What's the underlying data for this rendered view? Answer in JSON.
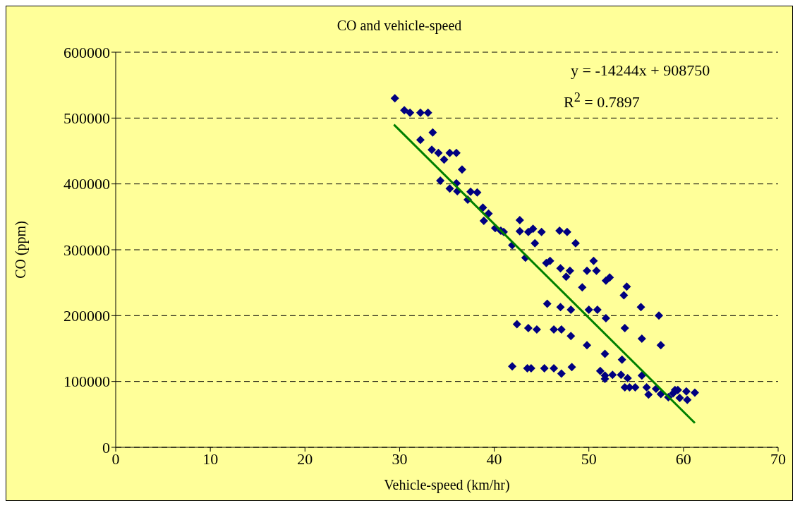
{
  "chart_data": {
    "type": "scatter",
    "title": "CO and vehicle-speed",
    "xlabel": "Vehicle-speed (km/hr)",
    "ylabel": "CO (ppm)",
    "xlim": [
      0,
      70
    ],
    "xticks": [
      0,
      10,
      20,
      30,
      40,
      50,
      60,
      70
    ],
    "ylim": [
      0,
      600000
    ],
    "yticks": [
      0,
      100000,
      200000,
      300000,
      400000,
      500000,
      600000
    ],
    "grid": "y",
    "legend": false,
    "marker": "diamond",
    "annotations": [
      "y = -14244x + 908750",
      "R$^{2}$ = 0.7897"
    ],
    "series": [
      {
        "color": "#000080",
        "x": [
          29.5,
          30.5,
          31.1,
          32.2,
          33.0,
          32.2,
          33.5,
          33.4,
          34.1,
          35.3,
          36.0,
          34.7,
          36.6,
          34.3,
          35.3,
          36.1,
          36.0,
          37.2,
          37.5,
          38.2,
          38.8,
          39.4,
          38.9,
          40.1,
          40.7,
          41.0,
          41.9,
          42.7,
          42.7,
          43.6,
          44.1,
          45.0,
          46.9,
          47.7,
          44.3,
          48.6,
          43.3,
          45.5,
          45.9,
          47.0,
          48.0,
          47.6,
          49.8,
          50.5,
          50.8,
          51.8,
          52.2,
          49.3,
          54.0,
          53.7,
          45.6,
          47.0,
          48.1,
          50.0,
          50.9,
          51.8,
          55.5,
          42.4,
          43.6,
          44.5,
          46.3,
          47.1,
          48.1,
          53.8,
          55.6,
          49.8,
          51.7,
          53.5,
          41.9,
          43.5,
          43.9,
          45.3,
          46.3,
          47.1,
          48.2,
          57.4,
          57.6,
          51.2,
          51.7,
          51.7,
          52.5,
          53.4,
          54.1,
          55.6,
          53.8,
          54.3,
          54.9,
          56.1,
          56.3,
          57.1,
          57.6,
          58.4,
          58.9,
          59.4,
          59.6,
          60.3,
          60.4,
          61.2,
          59.1
        ],
        "values": [
          530000,
          512000,
          508000,
          508000,
          508000,
          467000,
          478000,
          452000,
          447000,
          447000,
          447000,
          437000,
          422000,
          405000,
          393000,
          389000,
          401000,
          376000,
          388000,
          387000,
          364000,
          355000,
          344000,
          333000,
          329000,
          327000,
          307000,
          345000,
          328000,
          327000,
          332000,
          327000,
          329000,
          327000,
          310000,
          310000,
          288000,
          280000,
          283000,
          272000,
          268000,
          259000,
          268000,
          283000,
          268000,
          253000,
          258000,
          243000,
          244000,
          231000,
          218000,
          213000,
          209000,
          209000,
          209000,
          196000,
          213000,
          187000,
          181000,
          179000,
          179000,
          179000,
          169000,
          181000,
          165000,
          155000,
          142000,
          133000,
          123000,
          120000,
          120000,
          120000,
          120000,
          112000,
          122000,
          200000,
          155000,
          116000,
          109000,
          104000,
          110000,
          110000,
          105000,
          109000,
          91000,
          91000,
          91000,
          91000,
          80000,
          89000,
          81000,
          76000,
          82000,
          87000,
          75000,
          85000,
          72000,
          83000,
          87000
        ]
      },
      {
        "type": "line",
        "marker": "none",
        "color": "#008000",
        "x": [
          29.4,
          61.2
        ],
        "values": [
          490000,
          37000
        ]
      }
    ]
  }
}
